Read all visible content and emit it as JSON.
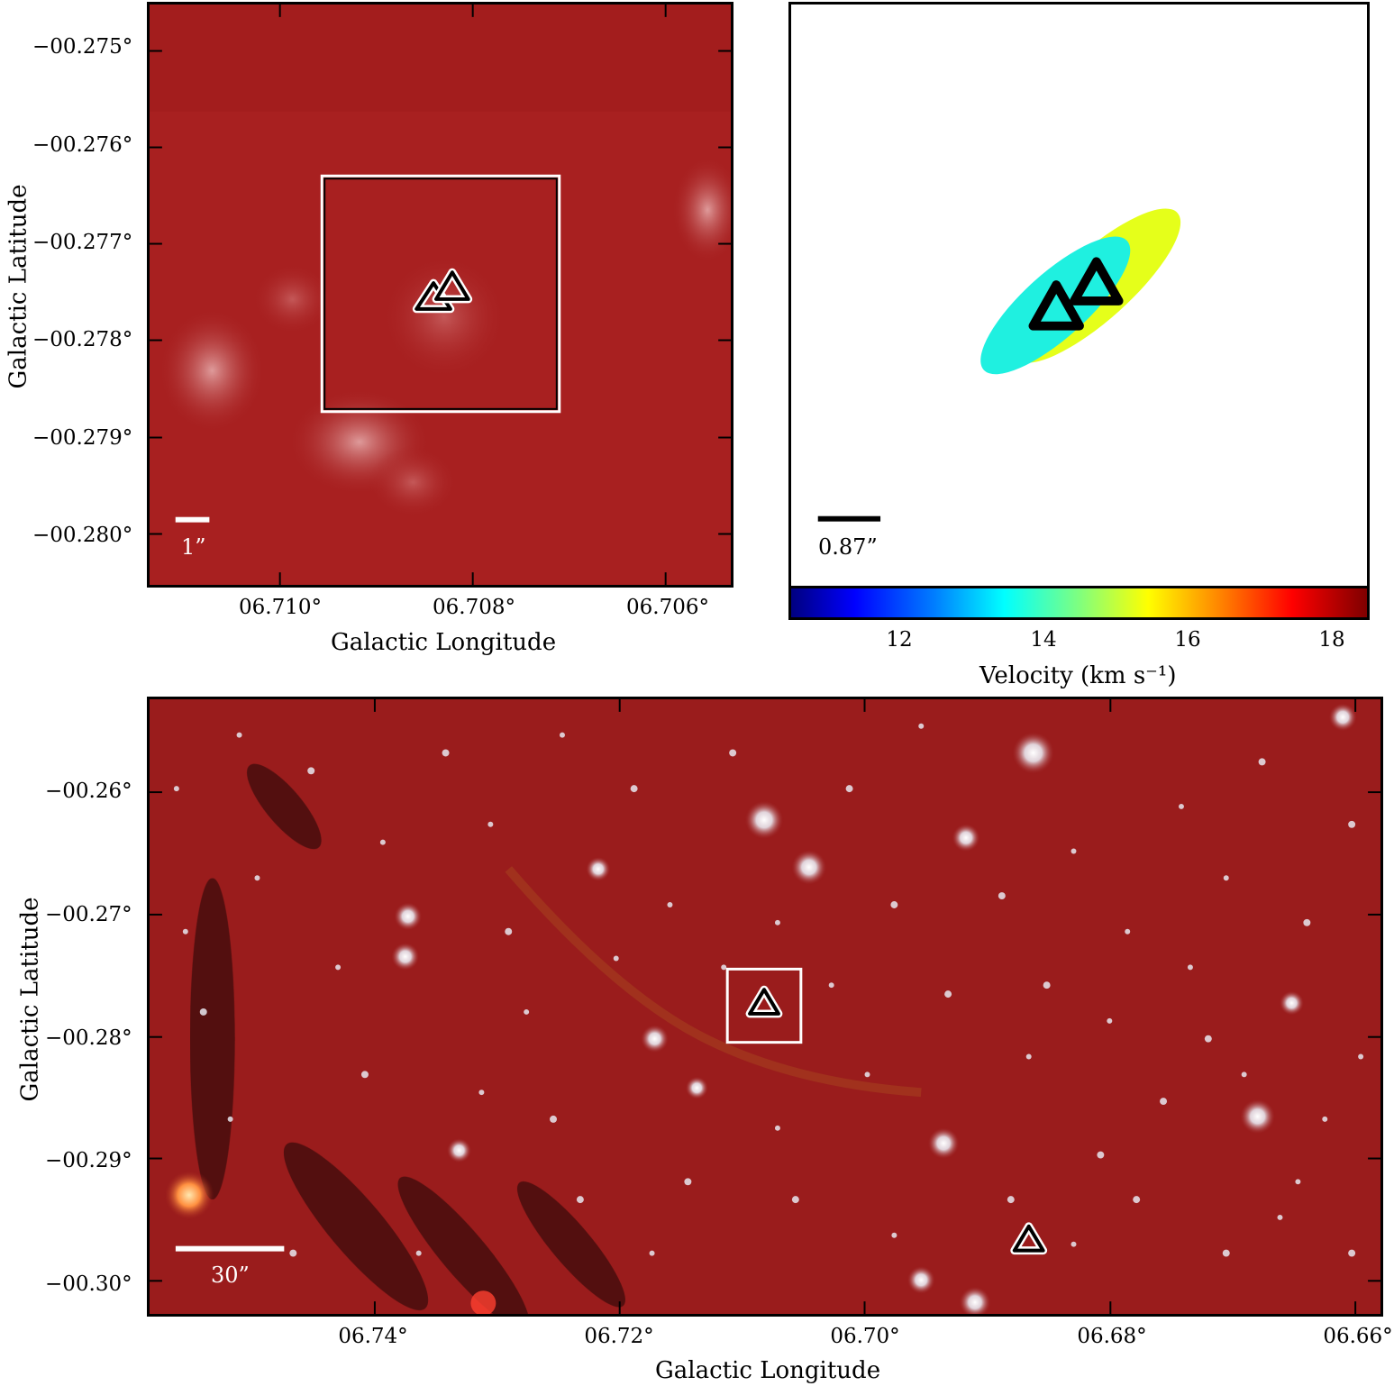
{
  "top_left": {
    "y_ticks": [
      "−00.275°",
      "−00.276°",
      "−00.277°",
      "−00.278°",
      "−00.279°",
      "−00.280°"
    ],
    "x_ticks": [
      "06.710°",
      "06.708°",
      "06.706°"
    ],
    "x_label": "Galactic Longitude",
    "y_label": "Galactic Latitude",
    "scale_bar": "1”",
    "background_color": "#a82020",
    "marker_icon": "triangle-marker-icon"
  },
  "top_right": {
    "scale_bar": "0.87”",
    "ellipse_colors": [
      "#e5ff1a",
      "#1ff0e0"
    ],
    "colorbar": {
      "ticks": [
        "12",
        "14",
        "16",
        "18"
      ],
      "label": "Velocity (km s⁻¹)",
      "colormap": "jet",
      "min": 10.5,
      "max": 18.5
    }
  },
  "bottom": {
    "y_ticks": [
      "−00.26°",
      "−00.27°",
      "−00.28°",
      "−00.29°",
      "−00.30°"
    ],
    "x_ticks": [
      "06.74°",
      "06.72°",
      "06.70°",
      "06.68°",
      "06.66°"
    ],
    "x_label": "Galactic Longitude",
    "y_label": "Galactic Latitude",
    "scale_bar": "30”",
    "background_color": "#9a1c1c",
    "marker_icon": "triangle-marker-icon"
  }
}
